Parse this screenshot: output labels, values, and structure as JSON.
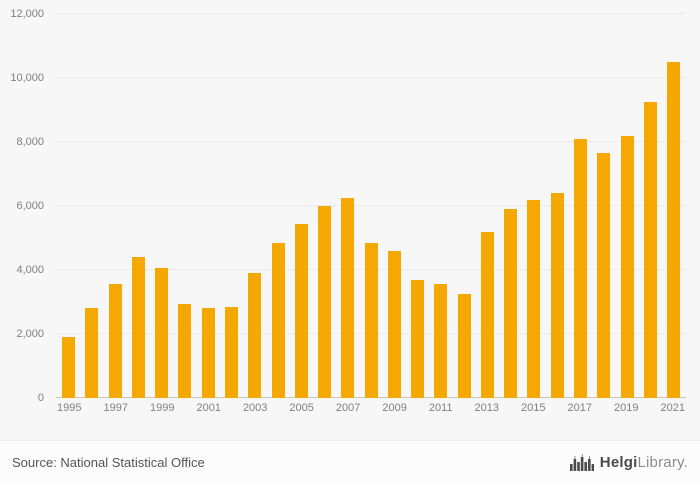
{
  "chart_data": {
    "type": "bar",
    "title": "",
    "xlabel": "",
    "ylabel": "",
    "categories": [
      "1995",
      "1996",
      "1997",
      "1998",
      "1999",
      "2000",
      "2001",
      "2002",
      "2003",
      "2004",
      "2005",
      "2006",
      "2007",
      "2008",
      "2009",
      "2010",
      "2011",
      "2012",
      "2013",
      "2014",
      "2015",
      "2016",
      "2017",
      "2018",
      "2019",
      "2020",
      "2021"
    ],
    "values": [
      1900,
      2800,
      3550,
      4400,
      4050,
      2950,
      2800,
      2850,
      3900,
      4850,
      5450,
      6000,
      6250,
      4850,
      4600,
      3700,
      3550,
      3250,
      5200,
      5900,
      6200,
      6400,
      8100,
      7650,
      8200,
      9250,
      10500
    ],
    "ylim": [
      0,
      12000
    ],
    "yticks": [
      0,
      2000,
      4000,
      6000,
      8000,
      10000,
      12000
    ],
    "ytick_labels": [
      "0",
      "2,000",
      "4,000",
      "6,000",
      "8,000",
      "10,000",
      "12,000"
    ],
    "xtick_labels": [
      "1995",
      "1997",
      "1999",
      "2001",
      "2003",
      "2005",
      "2007",
      "2009",
      "2011",
      "2013",
      "2015",
      "2017",
      "2019",
      "2021"
    ],
    "bar_color": "#F5A800",
    "grid": true,
    "legend": false,
    "background": "#f7f7f7"
  },
  "footer": {
    "source": "Source: National Statistical Office",
    "logo_primary": "Helgi",
    "logo_secondary": "Library."
  }
}
